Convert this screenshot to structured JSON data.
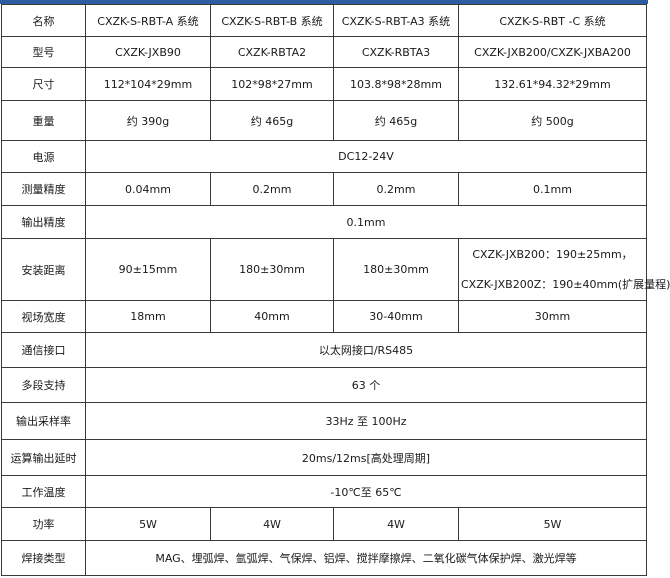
{
  "rows": [
    {
      "label": "名称",
      "cells": [
        "CXZK-S-RBT-A 系统",
        "CXZK-S-RBT-B 系统",
        "CXZK-S-RBT-A3 系统",
        "CXZK-S-RBT -C 系统"
      ]
    },
    {
      "label": "型号",
      "cells": [
        "CXZK-JXB90",
        "CXZK-RBTA2",
        "CXZK-RBTA3",
        "CXZK-JXB200/CXZK-JXBA200"
      ]
    },
    {
      "label": "尺寸",
      "cells": [
        "112*104*29mm",
        "102*98*27mm",
        "103.8*98*28mm",
        "132.61*94.32*29mm"
      ]
    },
    {
      "label": "重量",
      "cells": [
        "约 390g",
        "约 465g",
        "约 465g",
        "约 500g"
      ]
    },
    {
      "label": "电源",
      "merged": "DC12-24V"
    },
    {
      "label": "测量精度",
      "cells": [
        "0.04mm",
        "0.2mm",
        "0.2mm",
        "0.1mm"
      ]
    },
    {
      "label": "输出精度",
      "merged": "0.1mm"
    },
    {
      "label": "安装距离",
      "cells": [
        "90±15mm",
        "180±30mm",
        "180±30mm"
      ],
      "last_lines": [
        "CXZK-JXB200：190±25mm，",
        "CXZK-JXB200Z：190±40mm(扩展量程)"
      ]
    },
    {
      "label": "视场宽度",
      "cells": [
        "18mm",
        "40mm",
        "30-40mm",
        "30mm"
      ]
    },
    {
      "label": "通信接口",
      "merged": "以太网接口/RS485"
    },
    {
      "label": "多段支持",
      "merged": "63 个"
    },
    {
      "label": "输出采样率",
      "merged": "33Hz 至 100Hz"
    },
    {
      "label": "运算输出延时",
      "merged": "20ms/12ms[高处理周期]"
    },
    {
      "label": "工作温度",
      "merged": "-10℃至 65℃"
    },
    {
      "label": "功率",
      "cells": [
        "5W",
        "4W",
        "4W",
        "5W"
      ]
    },
    {
      "label": "焊接类型",
      "merged": "MAG、埋弧焊、氩弧焊、气保焊、铝焊、搅拌摩擦焊、二氧化碳气体保护焊、激光焊等"
    }
  ],
  "colors": {
    "accent_bar": "#2c5da3",
    "border": "#3a3a3a"
  }
}
